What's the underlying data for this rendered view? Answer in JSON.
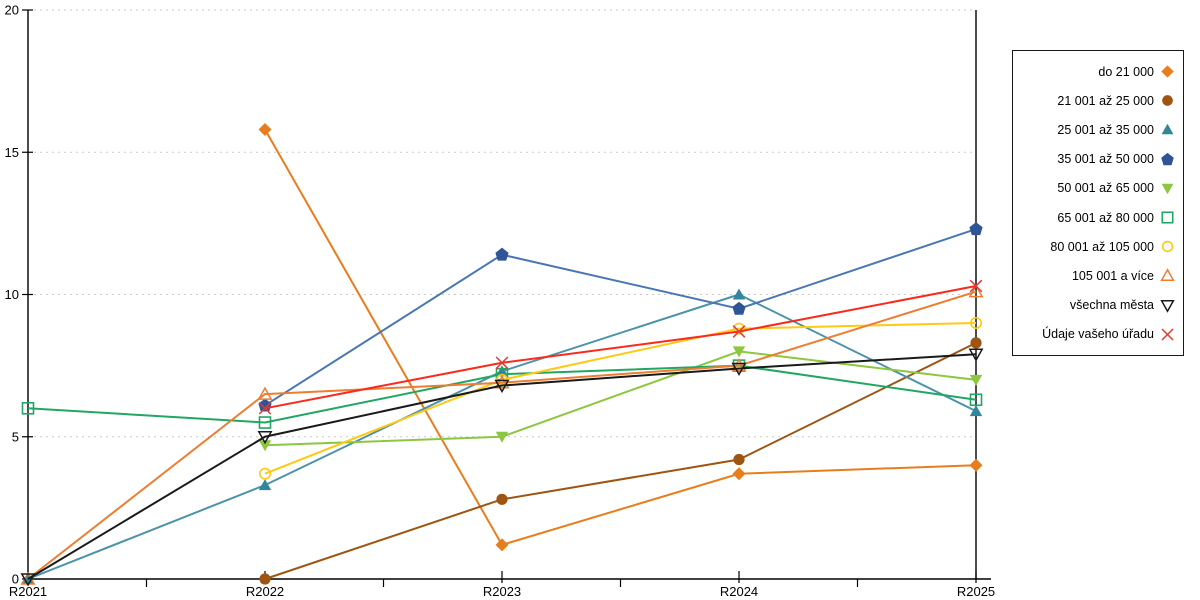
{
  "chart_data": {
    "type": "line",
    "title": "",
    "xlabel": "",
    "ylabel": "",
    "x_categories": [
      "R2021",
      "R2022",
      "R2023",
      "R2024",
      "R2025"
    ],
    "ylim": [
      0,
      20
    ],
    "yticks": [
      0,
      5,
      10,
      15,
      20
    ],
    "grid": {
      "horizontal_dashed_at": [
        5,
        10,
        15,
        20
      ],
      "color": "#c9c9c9"
    },
    "legend_position": "right-outside",
    "series": [
      {
        "name": "do 21 000",
        "marker": "diamond",
        "color": "#E87D1E",
        "line_color": "#E87D1E",
        "values": [
          null,
          15.8,
          1.2,
          3.7,
          4.0
        ]
      },
      {
        "name": "21 001 až 25 000",
        "marker": "circle",
        "color": "#9E5511",
        "line_color": "#9E5511",
        "values": [
          null,
          0,
          2.8,
          4.2,
          8.3
        ]
      },
      {
        "name": "25 001 až 35 000",
        "marker": "triangle-up",
        "color": "#31859C",
        "line_color": "#4A93A8",
        "values": [
          0,
          3.3,
          7.3,
          10.0,
          5.9
        ]
      },
      {
        "name": "35 001 až 50 000",
        "marker": "pentagon",
        "color": "#2F5597",
        "line_color": "#4A77B4",
        "values": [
          null,
          6.1,
          11.4,
          9.5,
          12.3
        ]
      },
      {
        "name": "50 001 až 65 000",
        "marker": "triangle-down",
        "color": "#8DC63F",
        "line_color": "#8DC63F",
        "values": [
          null,
          4.7,
          5.0,
          8.0,
          7.0
        ]
      },
      {
        "name": "65 001 až 80 000",
        "marker": "square-open",
        "color": "#21A663",
        "line_color": "#21A663",
        "values": [
          6.0,
          5.5,
          7.2,
          7.5,
          6.3
        ]
      },
      {
        "name": "80 001 až 105 000",
        "marker": "circle-open",
        "color": "#FFC914",
        "line_color": "#FFC914",
        "values": [
          null,
          3.7,
          7.0,
          8.8,
          9.0
        ]
      },
      {
        "name": "105 001 a více",
        "marker": "triangle-up-open",
        "color": "#ED7D31",
        "line_color": "#ED7D31",
        "values": [
          0,
          6.5,
          6.9,
          7.5,
          10.1
        ]
      },
      {
        "name": "všechna města",
        "marker": "triangle-down-open",
        "color": "#1A1A1A",
        "line_color": "#1A1A1A",
        "values": [
          0,
          5.0,
          6.8,
          7.4,
          7.9
        ]
      },
      {
        "name": "Údaje vašeho úřadu",
        "marker": "x",
        "color": "#DE3D34",
        "line_color": "#FB2A1C",
        "values": [
          null,
          6.0,
          7.6,
          8.7,
          10.3
        ]
      }
    ]
  }
}
